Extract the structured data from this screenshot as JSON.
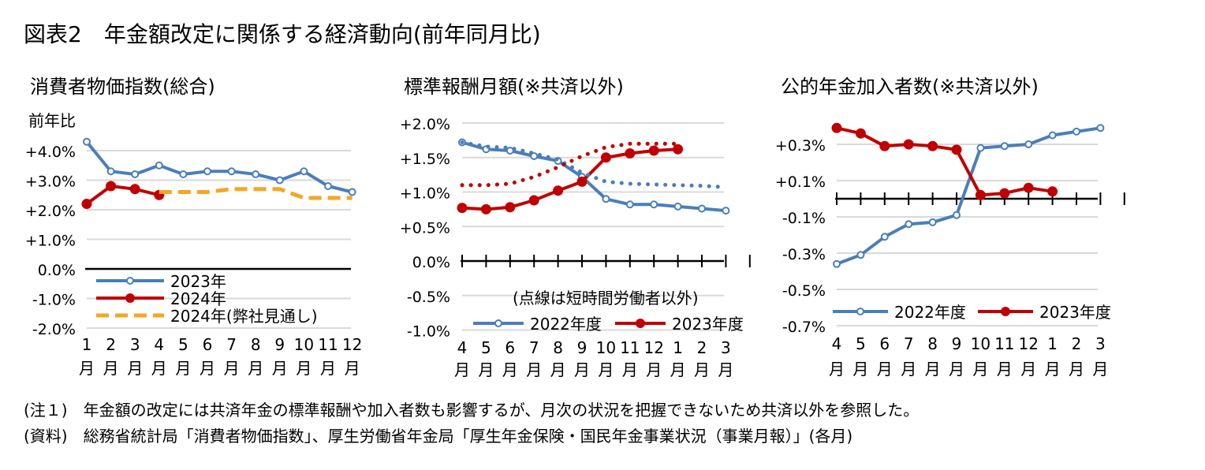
{
  "figure_title": "図表2　年金額改定に関係する経済動向(前年同月比)",
  "notes": [
    "(注１)　年金額の改定には共済年金の標準報酬や加入者数も影響するが、月次の状況を把握できないため共済以外を参照した。",
    "(資料)　総務省統計局「消費者物価指数」、厚生労働省年金局「厚生年金保険・国民年金事業状況（事業月報）」(各月)"
  ],
  "colors": {
    "blue": "#4a7ebb",
    "red": "#c00000",
    "orange": "#f5a623",
    "grid": "#d9d9d9"
  },
  "chart_data": [
    {
      "type": "line",
      "title": "消費者物価指数(総合)",
      "ylabel": "前年比",
      "ylim": [
        -2.0,
        4.5
      ],
      "yticks": [
        -2.0,
        -1.0,
        0.0,
        1.0,
        2.0,
        3.0,
        4.0
      ],
      "ytick_labels": [
        "-2.0%",
        "-1.0%",
        "0.0%",
        "+1.0%",
        "+2.0%",
        "+3.0%",
        "+4.0%"
      ],
      "categories": [
        "1",
        "2",
        "3",
        "4",
        "5",
        "6",
        "7",
        "8",
        "9",
        "10",
        "11",
        "12"
      ],
      "xunit": "月",
      "grid": true,
      "legend_position": "lower-left",
      "series": [
        {
          "name": "2023年",
          "color": "#4a7ebb",
          "style": "solid-open-marker",
          "values": [
            4.3,
            3.3,
            3.2,
            3.5,
            3.2,
            3.3,
            3.3,
            3.2,
            3.0,
            3.3,
            2.8,
            2.6
          ]
        },
        {
          "name": "2024年",
          "color": "#c00000",
          "style": "solid-filled-marker",
          "values": [
            2.2,
            2.8,
            2.7,
            2.5,
            null,
            null,
            null,
            null,
            null,
            null,
            null,
            null
          ]
        },
        {
          "name": "2024年(弊社見通し)",
          "color": "#f5a623",
          "style": "dashed",
          "values": [
            null,
            null,
            null,
            2.6,
            2.6,
            2.6,
            2.7,
            2.7,
            2.7,
            2.4,
            2.4,
            2.4
          ]
        }
      ]
    },
    {
      "type": "line",
      "title": "標準報酬月額(※共済以外)",
      "ylim": [
        -1.0,
        2.0
      ],
      "yticks": [
        -1.0,
        -0.5,
        0.0,
        0.5,
        1.0,
        1.5,
        2.0
      ],
      "ytick_labels": [
        "-1.0%",
        "-0.5%",
        "0.0%",
        "+0.5%",
        "+1.0%",
        "+1.5%",
        "+2.0%"
      ],
      "categories": [
        "4",
        "5",
        "6",
        "7",
        "8",
        "9",
        "10",
        "11",
        "12",
        "1",
        "2",
        "3"
      ],
      "xunit": "月",
      "grid": true,
      "annotation": "(点線は短時間労働者以外)",
      "legend_position": "bottom",
      "series": [
        {
          "name": "2022年度",
          "color": "#4a7ebb",
          "style": "solid-open-marker",
          "values": [
            1.72,
            1.62,
            1.6,
            1.52,
            1.45,
            1.22,
            0.9,
            0.82,
            0.82,
            0.79,
            0.76,
            0.73
          ]
        },
        {
          "name": "2023年度",
          "color": "#c00000",
          "style": "solid-filled-marker",
          "values": [
            0.77,
            0.75,
            0.78,
            0.88,
            1.02,
            1.15,
            1.5,
            1.56,
            1.6,
            1.62,
            null,
            null
          ]
        },
        {
          "name": "2022年度(短時間労働者以外)",
          "color": "#4a7ebb",
          "style": "dotted",
          "values": [
            1.72,
            1.66,
            1.64,
            1.56,
            1.47,
            1.28,
            1.15,
            1.12,
            1.11,
            1.1,
            1.09,
            1.07
          ]
        },
        {
          "name": "2023年度(短時間労働者以外)",
          "color": "#c00000",
          "style": "dotted",
          "values": [
            1.1,
            1.1,
            1.12,
            1.22,
            1.36,
            1.52,
            1.65,
            1.7,
            1.7,
            1.7,
            null,
            null
          ]
        }
      ]
    },
    {
      "type": "line",
      "title": "公的年金加入者数(※共済以外)",
      "ylim": [
        -0.7,
        0.4
      ],
      "yticks": [
        -0.7,
        -0.5,
        -0.3,
        -0.1,
        0.1,
        0.3
      ],
      "ytick_labels": [
        "-0.7%",
        "-0.5%",
        "-0.3%",
        "-0.1%",
        "+0.1%",
        "+0.3%"
      ],
      "categories": [
        "4",
        "5",
        "6",
        "7",
        "8",
        "9",
        "10",
        "11",
        "12",
        "1",
        "2",
        "3"
      ],
      "xunit": "月",
      "grid": true,
      "legend_position": "bottom",
      "series": [
        {
          "name": "2022年度",
          "color": "#4a7ebb",
          "style": "solid-open-marker",
          "values": [
            -0.36,
            -0.31,
            -0.21,
            -0.14,
            -0.13,
            -0.09,
            0.28,
            0.29,
            0.3,
            0.35,
            0.37,
            0.39
          ]
        },
        {
          "name": "2023年度",
          "color": "#c00000",
          "style": "solid-filled-marker",
          "values": [
            0.39,
            0.36,
            0.29,
            0.3,
            0.29,
            0.27,
            0.02,
            0.03,
            0.06,
            0.04,
            null,
            null
          ]
        }
      ]
    }
  ]
}
